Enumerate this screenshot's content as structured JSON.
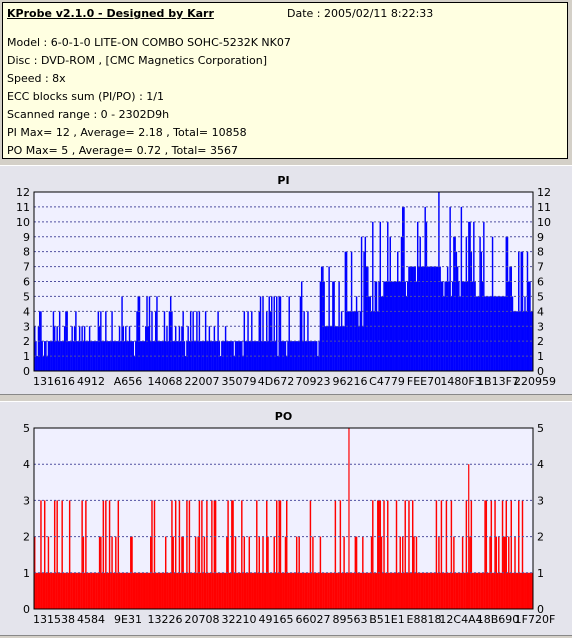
{
  "info": {
    "title": "KProbe v2.1.0 - Designed by Karr",
    "date": "Date : 2005/02/11 8:22:33",
    "lines": [
      "Model : 6-0-1-0 LITE-ON COMBO SOHC-5232K NK07",
      "Disc : DVD-ROM ,  [CMC Magnetics Corporation]",
      "Speed : 8x",
      "ECC blocks sum (PI/PO) : 1/1",
      "Scanned range : 0 - 2302D9h",
      "PI Max= 12 , Average= 2.18 , Total= 10858",
      "PO Max= 5 , Average= 0.72 , Total= 3567"
    ]
  },
  "colors": {
    "pi": "#0000ff",
    "po": "#ff0000",
    "plot_bg": "#f0f0ff",
    "panel_bg": "#e4e4ec",
    "info_bg": "#ffffe1"
  },
  "chart_data": [
    {
      "type": "bar",
      "title": "PI",
      "ylim": [
        0,
        12
      ],
      "yticks": [
        "0",
        "1",
        "2",
        "3",
        "4",
        "5",
        "6",
        "7",
        "8",
        "9",
        "10",
        "11",
        "12"
      ],
      "xticks": [
        "131616",
        "4912",
        "A656",
        "14068",
        "22007",
        "35079",
        "4D672",
        "70923",
        "96216",
        "C4779",
        "FEE70",
        "1480F3",
        "1B13F7",
        "220959"
      ],
      "grid": true,
      "max": 12,
      "average": 2.18,
      "total": 10858,
      "profile": [
        {
          "x": 0.0,
          "base": 2,
          "peak": 4
        },
        {
          "x": 0.1,
          "base": 2,
          "peak": 4
        },
        {
          "x": 0.2,
          "base": 2,
          "peak": 5
        },
        {
          "x": 0.35,
          "base": 2,
          "peak": 4
        },
        {
          "x": 0.45,
          "base": 2,
          "peak": 5
        },
        {
          "x": 0.55,
          "base": 2,
          "peak": 6
        },
        {
          "x": 0.6,
          "base": 3,
          "peak": 7
        },
        {
          "x": 0.65,
          "base": 4,
          "peak": 9
        },
        {
          "x": 0.72,
          "base": 6,
          "peak": 11
        },
        {
          "x": 0.78,
          "base": 7,
          "peak": 12
        },
        {
          "x": 0.85,
          "base": 6,
          "peak": 11
        },
        {
          "x": 0.92,
          "base": 5,
          "peak": 9
        },
        {
          "x": 1.0,
          "base": 4,
          "peak": 8
        }
      ]
    },
    {
      "type": "bar",
      "title": "PO",
      "ylim": [
        0,
        5
      ],
      "yticks": [
        "0",
        "1",
        "2",
        "3",
        "4",
        "5"
      ],
      "xticks": [
        "131538",
        "4584",
        "9E31",
        "13226",
        "20708",
        "32210",
        "49165",
        "66027",
        "89563",
        "B51E1",
        "E8818",
        "12C4A4",
        "18B690",
        "1F720F"
      ],
      "grid": true,
      "max": 5,
      "average": 0.72,
      "total": 3567,
      "profile": [
        {
          "x": 0.0,
          "base": 1,
          "peak": 3
        },
        {
          "x": 0.5,
          "base": 1,
          "peak": 3
        },
        {
          "x": 1.0,
          "base": 1,
          "peak": 3
        }
      ],
      "spikes": [
        {
          "x": 0.63,
          "value": 5
        },
        {
          "x": 0.87,
          "value": 4
        }
      ]
    }
  ]
}
